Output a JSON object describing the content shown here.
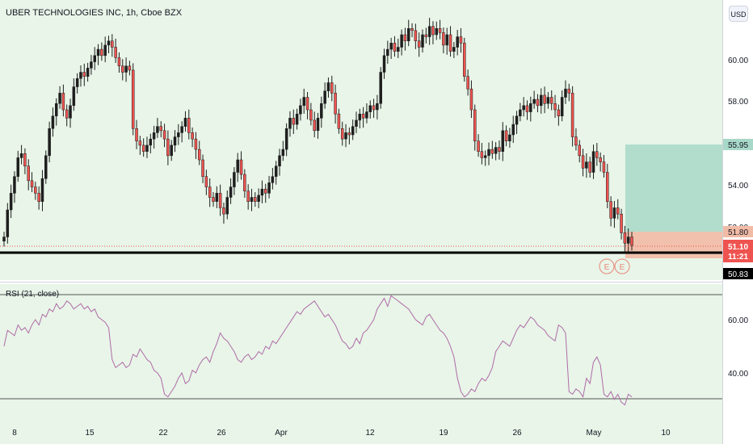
{
  "header": {
    "title": "UBER TECHNOLOGIES INC, 1h, Cboe BZX",
    "currency": "USD"
  },
  "rsi": {
    "label": "RSI (21, close)",
    "ticks": [
      "60.00",
      "40.00"
    ],
    "levels": [
      70,
      30
    ],
    "values": [
      50,
      56,
      55,
      54,
      58,
      56,
      57,
      55,
      58,
      60,
      58,
      62,
      61,
      64,
      63,
      66,
      64,
      65,
      67,
      66,
      64,
      65,
      66,
      64,
      65,
      63,
      64,
      61,
      60,
      59,
      57,
      45,
      42,
      43,
      44,
      42,
      43,
      47,
      46,
      49,
      47,
      45,
      44,
      41,
      40,
      38,
      32,
      31,
      33,
      35,
      38,
      40,
      36,
      37,
      41,
      40,
      43,
      45,
      46,
      44,
      48,
      51,
      55,
      53,
      52,
      50,
      48,
      45,
      44,
      46,
      47,
      45,
      46,
      48,
      47,
      50,
      49,
      52,
      51,
      53,
      55,
      57,
      59,
      61,
      63,
      62,
      64,
      65,
      66,
      67,
      65,
      63,
      61,
      62,
      60,
      58,
      55,
      52,
      51,
      49,
      50,
      53,
      51,
      55,
      56,
      58,
      60,
      64,
      66,
      68,
      65,
      69,
      68,
      67,
      66,
      65,
      64,
      62,
      60,
      59,
      58,
      61,
      62,
      60,
      58,
      56,
      55,
      53,
      50,
      46,
      38,
      33,
      31,
      32,
      34,
      33,
      36,
      38,
      37,
      39,
      42,
      48,
      50,
      52,
      51,
      50,
      53,
      56,
      58,
      57,
      59,
      61,
      60,
      58,
      57,
      56,
      54,
      53,
      52,
      58,
      57,
      55,
      33,
      32,
      34,
      33,
      31,
      38,
      36,
      44,
      46,
      43,
      32,
      31,
      33,
      30,
      32,
      29,
      28,
      32,
      31
    ]
  },
  "main": {
    "price_ticks": [
      "60.00",
      "58.00",
      "54.00"
    ],
    "candle_closes": [
      51.5,
      52.8,
      53.6,
      54.4,
      55.3,
      55.5,
      54.9,
      54.2,
      53.9,
      53.6,
      53.2,
      54.3,
      55.4,
      56.7,
      57.3,
      57.9,
      58.4,
      57.6,
      57.2,
      57.8,
      58.7,
      59.1,
      59.4,
      59.2,
      59.6,
      59.9,
      60.2,
      60.5,
      60.2,
      60.7,
      60.9,
      60.6,
      60.1,
      59.7,
      59.4,
      59.7,
      59.5,
      56.7,
      56.1,
      55.9,
      55.6,
      55.9,
      56.2,
      56.5,
      56.8,
      56.6,
      56.2,
      55.4,
      55.9,
      56.3,
      56.5,
      56.8,
      57.2,
      56.5,
      56.2,
      55.7,
      55.2,
      54.4,
      53.9,
      53.4,
      53.2,
      53.6,
      52.9,
      52.6,
      53.4,
      53.9,
      54.6,
      55.2,
      54.5,
      53.7,
      53.2,
      53.4,
      53.2,
      53.5,
      53.8,
      53.6,
      54.1,
      54.4,
      54.9,
      55.4,
      55.7,
      56.7,
      57.2,
      56.9,
      57.4,
      57.8,
      58.2,
      57.6,
      57.1,
      56.6,
      57.2,
      57.9,
      58.5,
      58.9,
      58.4,
      57.4,
      56.7,
      56.2,
      56.5,
      56.4,
      56.8,
      57.1,
      57.4,
      57.2,
      57.5,
      57.8,
      57.6,
      57.9,
      59.4,
      60.2,
      60.5,
      60.8,
      60.4,
      60.6,
      61.2,
      60.9,
      61.5,
      61.4,
      60.9,
      60.6,
      61.2,
      61.1,
      61.6,
      61.2,
      61.5,
      61.3,
      60.7,
      61.2,
      60.4,
      60.6,
      61.1,
      60.8,
      59.2,
      58.6,
      57.6,
      56.1,
      55.6,
      55.3,
      55.4,
      55.7,
      55.5,
      55.8,
      55.6,
      56.6,
      56.1,
      56.4,
      56.9,
      57.3,
      57.6,
      57.8,
      57.5,
      57.9,
      58.1,
      57.8,
      58.3,
      57.9,
      58.2,
      57.9,
      57.6,
      57.3,
      58.2,
      58.6,
      58.4,
      56.3,
      55.9,
      55.4,
      54.8,
      55.1,
      54.6,
      55.6,
      55.3,
      55.1,
      54.6,
      53.2,
      52.4,
      52.9,
      52.6,
      51.7,
      51.2,
      51.5,
      51.1
    ],
    "current_price": "51.10",
    "countdown": "11:21",
    "target_price": "55.95",
    "stop_price": "51.80",
    "support_price": "50.83",
    "hidden_tick": "52.00",
    "earnings_marker": "E"
  },
  "x_axis": {
    "labels": [
      "8",
      "15",
      "22",
      "26",
      "Apr",
      "12",
      "19",
      "26",
      "May",
      "10"
    ]
  },
  "colors": {
    "up": "#26a69a",
    "down": "#ef5350",
    "candle": "#1e1e1e",
    "rsi_line": "#b06aa8",
    "target_zone": "#a8d8c8",
    "stop_zone": "#f2bba6",
    "support_line": "#000000",
    "background_tint": "#e4f3e4",
    "marker": "#e8877a"
  }
}
